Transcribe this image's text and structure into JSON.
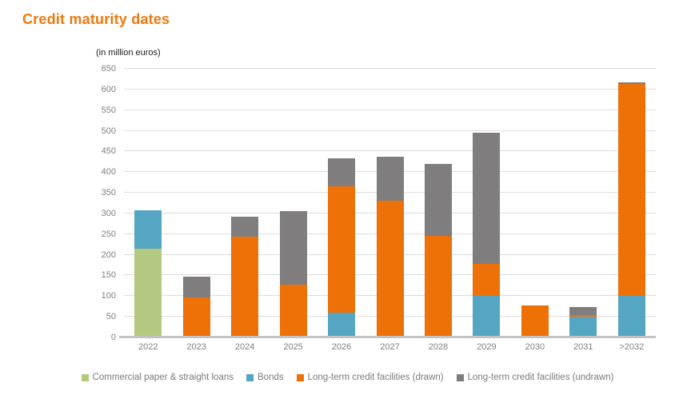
{
  "page": {
    "title": "Credit maturity dates",
    "subtitle": "(in million euros)",
    "title_color": "#f0780a"
  },
  "chart_data": {
    "type": "bar",
    "stacked": true,
    "title": "Credit maturity dates",
    "subtitle": "(in million euros)",
    "categories": [
      "2022",
      "2023",
      "2024",
      "2025",
      "2026",
      "2027",
      "2028",
      "2029",
      "2030",
      "2031",
      ">2032"
    ],
    "series": [
      {
        "name": "Commercial paper & straight loans",
        "color": "#b3c980",
        "values": [
          215,
          0,
          0,
          0,
          0,
          0,
          0,
          0,
          0,
          0,
          0
        ]
      },
      {
        "name": "Bonds",
        "color": "#55a6c2",
        "values": [
          92,
          0,
          0,
          0,
          60,
          0,
          0,
          100,
          0,
          50,
          100
        ]
      },
      {
        "name": "Long-term credit facilities (drawn)",
        "color": "#ee7108",
        "values": [
          0,
          97,
          243,
          127,
          305,
          330,
          245,
          78,
          78,
          4,
          513
        ]
      },
      {
        "name": "Long-term credit facilities (undrawn)",
        "color": "#7f7d7d",
        "values": [
          0,
          51,
          49,
          178,
          68,
          107,
          175,
          317,
          0,
          20,
          5
        ]
      }
    ],
    "totals": [
      307,
      148,
      292,
      305,
      433,
      437,
      420,
      495,
      78,
      74,
      618
    ],
    "xlabel": "",
    "ylabel": "in million euros",
    "ylim": [
      0,
      650
    ],
    "ytick_step": 50,
    "grid": true,
    "legend_position": "bottom",
    "axis_label_color": "#7f7f7f",
    "gridline_color": "#dcdcdc",
    "baseline_color": "#c3c3c3"
  }
}
